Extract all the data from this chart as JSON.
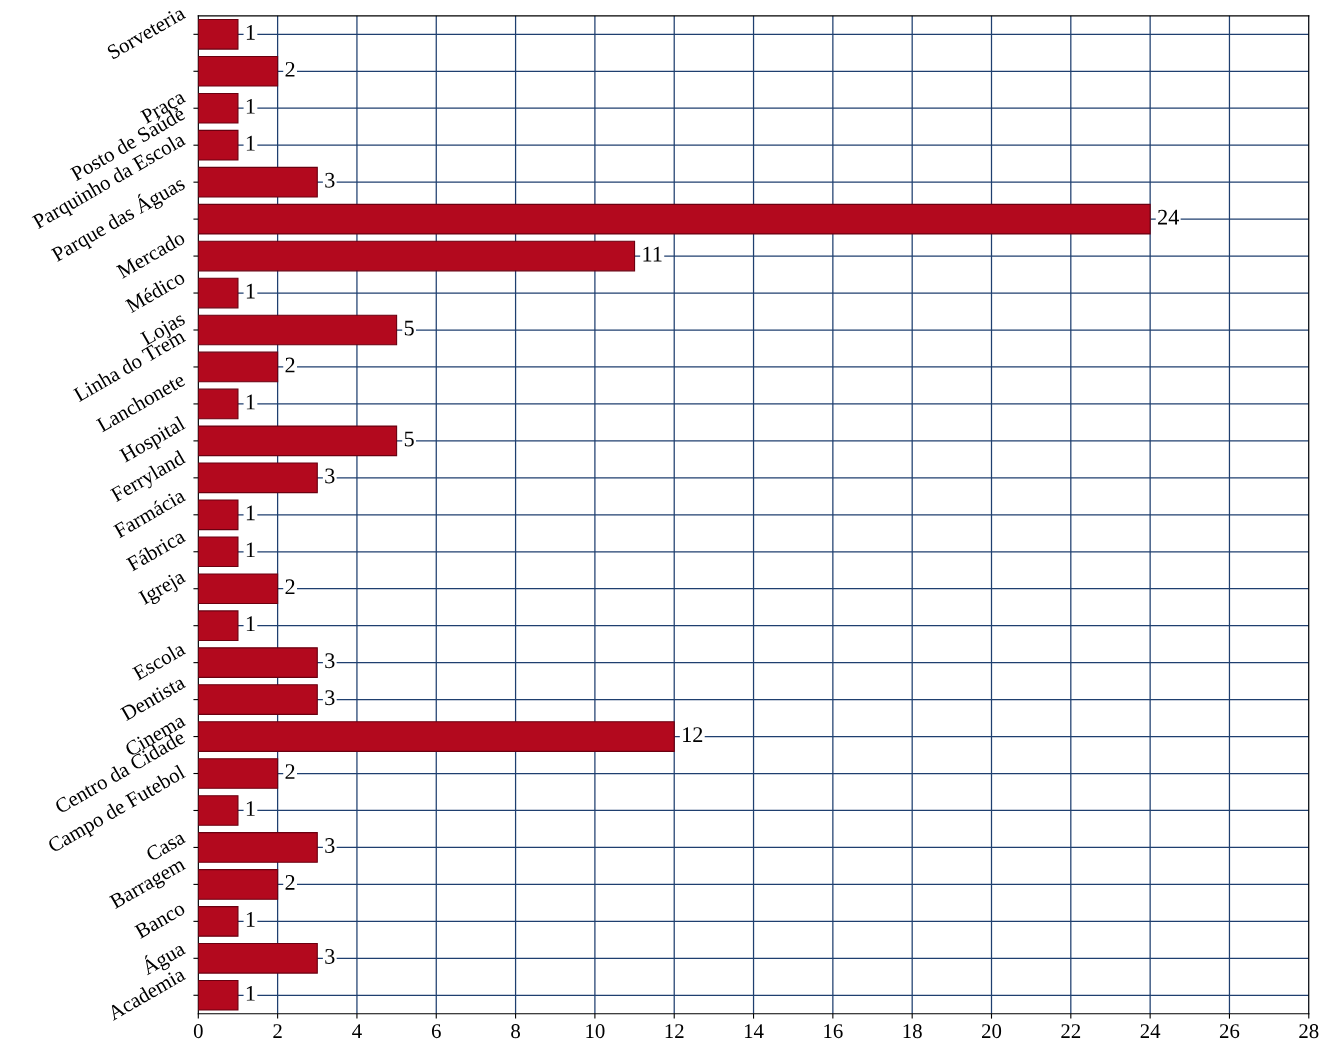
{
  "chart_data": {
    "type": "bar",
    "orientation": "horizontal",
    "categories": [
      "Sorveteria",
      null,
      "Praça",
      "Posto de Saúde",
      "Parquinho da Escola",
      "Parque das Águas",
      "Mercado",
      "Médico",
      "Lojas",
      "Linha do Trem",
      "Lanchonete",
      "Hospital",
      "Ferryland",
      "Farmácia",
      "Fábrica",
      "Igreja",
      null,
      "Escola",
      "Dentista",
      "Cinema",
      "Centro da Cidade",
      "Campo de Futebol",
      "Casa",
      "Barragem",
      "Banco",
      "Água",
      "Academia"
    ],
    "values": [
      1,
      2,
      1,
      1,
      3,
      24,
      11,
      1,
      5,
      2,
      1,
      5,
      3,
      1,
      1,
      2,
      1,
      3,
      3,
      12,
      2,
      1,
      3,
      2,
      1,
      3,
      1
    ],
    "color": "#b3091e",
    "xlim": [
      0,
      28
    ],
    "xticks": [
      0,
      2,
      4,
      6,
      8,
      10,
      12,
      14,
      16,
      18,
      20,
      22,
      24,
      26,
      28
    ],
    "grid": true,
    "data_labels": true
  }
}
